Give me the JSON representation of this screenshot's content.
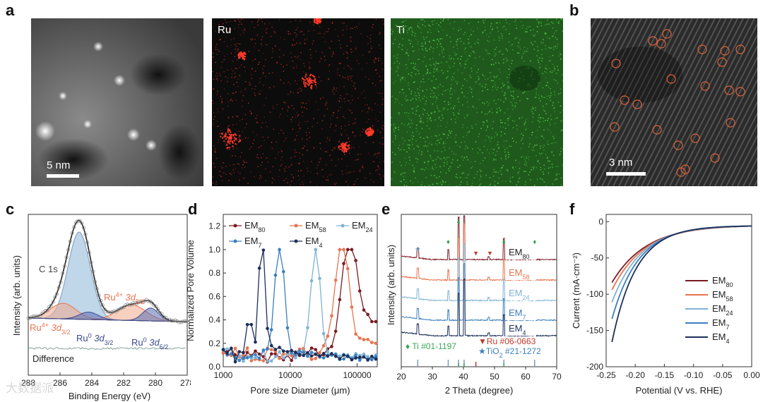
{
  "panels": {
    "a": {
      "letter": "a",
      "scale_label": "5 nm",
      "map_ru": "Ru",
      "map_ti": "Ti"
    },
    "b": {
      "letter": "b",
      "scale_label": "3 nm"
    },
    "c": {
      "letter": "c"
    },
    "d": {
      "letter": "d"
    },
    "e": {
      "letter": "e"
    },
    "f": {
      "letter": "f"
    }
  },
  "watermark": "大数据派",
  "colors": {
    "EM80": "#7a1a22",
    "EM58": "#e8734f",
    "EM24": "#7fb3d5",
    "EM7": "#3a7fbf",
    "EM4": "#1c2f5a",
    "green": "#3aa655",
    "red": "#c0392b"
  },
  "chart_data": [
    {
      "id": "c",
      "type": "line",
      "title": "",
      "xlabel": "Binding Energy (eV)",
      "ylabel": "Intensity (arb. units)",
      "xlim": [
        288,
        278
      ],
      "xticks": [
        288,
        286,
        284,
        282,
        280,
        278
      ],
      "annotations": [
        "C 1s",
        "Ru4+ 3d5/2",
        "Ru4+ 3d3/2",
        "Ru0 3d3/2",
        "Ru0 3d5/2",
        "Difference"
      ],
      "peaks": [
        {
          "name": "C 1s",
          "center": 284.8,
          "height": 1.0
        },
        {
          "name": "Ru4+ 3d3/2",
          "center": 285.8,
          "height": 0.18
        },
        {
          "name": "Ru4+ 3d5/2",
          "center": 281.5,
          "height": 0.16
        },
        {
          "name": "Ru0 3d3/2",
          "center": 284.4,
          "height": 0.1
        },
        {
          "name": "Ru0 3d5/2",
          "center": 280.3,
          "height": 0.14
        }
      ]
    },
    {
      "id": "d",
      "type": "line",
      "xlabel": "Pore size Diameter (μm)",
      "ylabel": "Normalized Pore Volume",
      "xscale": "log",
      "xlim": [
        1000,
        200000
      ],
      "xtick_labels": [
        "1000",
        "10000",
        "100000"
      ],
      "ylim": [
        0,
        1.3
      ],
      "yticks": [
        0.0,
        0.2,
        0.4,
        0.6,
        0.8,
        1.0,
        1.2
      ],
      "legend": "top",
      "series": [
        {
          "name": "EM80",
          "label_main": "EM",
          "label_sub": "80",
          "peak": 80000,
          "width": 0.13,
          "side": 0.55
        },
        {
          "name": "EM58",
          "label_main": "EM",
          "label_sub": "58",
          "peak": 60000,
          "width": 0.11,
          "side": 0.3
        },
        {
          "name": "EM24",
          "label_main": "EM",
          "label_sub": "24",
          "peak": 24000,
          "width": 0.07,
          "side": 0.06
        },
        {
          "name": "EM7",
          "label_main": "EM",
          "label_sub": "7",
          "peak": 7000,
          "width": 0.07,
          "side": 0.08
        },
        {
          "name": "EM4",
          "label_main": "EM",
          "label_sub": "4",
          "peak": 3800,
          "width": 0.05,
          "side": 0.12
        }
      ]
    },
    {
      "id": "e",
      "type": "line",
      "xlabel": "2 Theta (degree)",
      "ylabel": "Intensity (arb. units)",
      "xlim": [
        20,
        70
      ],
      "xticks": [
        20,
        30,
        40,
        50,
        60,
        70
      ],
      "series": [
        {
          "name": "EM80",
          "label_main": "EM",
          "label_sub": "80"
        },
        {
          "name": "EM58",
          "label_main": "EM",
          "label_sub": "58"
        },
        {
          "name": "EM24",
          "label_main": "EM",
          "label_sub": "24"
        },
        {
          "name": "EM7",
          "label_main": "EM",
          "label_sub": "7"
        },
        {
          "name": "EM4",
          "label_main": "EM",
          "label_sub": "4"
        }
      ],
      "peaks_ti": [
        35.1,
        38.4,
        40.2,
        53.0,
        62.9
      ],
      "peaks_tio2": [
        25.3
      ],
      "peaks_ru": [
        38.4,
        44.0
      ],
      "ref_labels": {
        "ti": "Ti #01-1197",
        "ru": "Ru #06-0663",
        "tio2_main": "TiO",
        "tio2_sub": "2",
        "tio2_rest": " #21-1272"
      }
    },
    {
      "id": "f",
      "type": "line",
      "xlabel": "Potential (V vs. RHE)",
      "ylabel": "Current (mA·cm⁻²)",
      "xlim": [
        -0.25,
        0.0
      ],
      "xticks": [
        -0.25,
        -0.2,
        -0.15,
        -0.1,
        -0.05,
        0.0
      ],
      "xtick_labels": [
        "-0.25",
        "-0.20",
        "-0.15",
        "-0.10",
        "-0.05",
        "0.00"
      ],
      "ylim": [
        -200,
        10
      ],
      "yticks": [
        0,
        -50,
        -100,
        -150,
        -200
      ],
      "legend": "right",
      "series": [
        {
          "name": "EM80",
          "label_main": "EM",
          "label_sub": "80",
          "end_current": -78,
          "k": 17
        },
        {
          "name": "EM58",
          "label_main": "EM",
          "label_sub": "58",
          "end_current": -88,
          "k": 18
        },
        {
          "name": "EM24",
          "label_main": "EM",
          "label_sub": "24",
          "end_current": -105,
          "k": 20
        },
        {
          "name": "EM7",
          "label_main": "EM",
          "label_sub": "7",
          "end_current": -128,
          "k": 22
        },
        {
          "name": "EM4",
          "label_main": "EM",
          "label_sub": "4",
          "end_current": -160,
          "k": 24
        }
      ]
    }
  ]
}
